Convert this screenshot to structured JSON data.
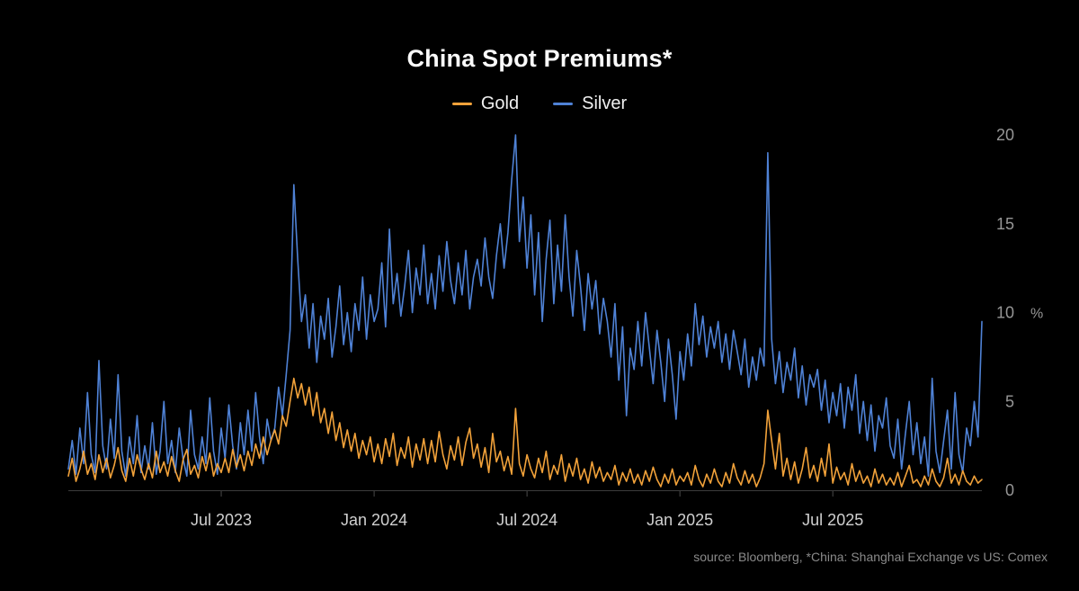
{
  "chart_data": {
    "type": "line",
    "title": "China Spot Premiums*",
    "source": "source: Bloomberg, *China: Shanghai Exchange vs US: Comex",
    "ylabel": "%",
    "ylim": [
      0,
      20
    ],
    "y_ticks": [
      0,
      5,
      10,
      15,
      20
    ],
    "grid": false,
    "legend_position": "top-center",
    "x_unit": "months since Jan 2023",
    "x_domain": [
      0,
      35.85
    ],
    "x_start": 0,
    "x_step": 0.15,
    "x_ticks": [
      {
        "pos": 6,
        "label": "Jul 2023"
      },
      {
        "pos": 12,
        "label": "Jan 2024"
      },
      {
        "pos": 18,
        "label": "Jul 2024"
      },
      {
        "pos": 24,
        "label": "Jan 2025"
      },
      {
        "pos": 30,
        "label": "Jul 2025"
      }
    ],
    "colors": {
      "axis": "#3c3c3c",
      "tick_mark": "#4a4a4a",
      "x_tick_label": "#d0d0d0",
      "y_tick_label": "#969696",
      "title": "#fafafa",
      "legend_text": "#f0f0f0",
      "source_text": "#8a8a8a",
      "background": "#000000"
    },
    "series": [
      {
        "name": "Gold",
        "color": "#f2a23a",
        "values": [
          0.8,
          1.8,
          0.5,
          1.2,
          2.2,
          0.9,
          1.5,
          0.6,
          2.0,
          1.0,
          1.8,
          0.7,
          1.4,
          2.4,
          1.1,
          0.5,
          1.8,
          0.8,
          2.0,
          1.2,
          0.6,
          1.5,
          0.7,
          2.2,
          1.0,
          1.6,
          0.8,
          1.9,
          1.1,
          0.5,
          1.7,
          2.3,
          0.9,
          1.4,
          0.7,
          1.9,
          1.1,
          2.1,
          0.8,
          1.5,
          1.0,
          1.8,
          1.0,
          2.3,
          1.3,
          2.0,
          1.1,
          2.2,
          1.4,
          2.6,
          1.8,
          3.0,
          2.0,
          2.8,
          3.4,
          2.6,
          4.2,
          3.6,
          5.0,
          6.3,
          5.2,
          6.0,
          4.8,
          5.8,
          4.2,
          5.5,
          3.8,
          4.6,
          3.2,
          4.4,
          2.8,
          3.8,
          2.4,
          3.4,
          2.2,
          3.2,
          1.8,
          2.8,
          2.0,
          3.0,
          1.6,
          2.6,
          1.5,
          2.9,
          1.9,
          3.2,
          1.4,
          2.4,
          1.8,
          3.0,
          1.3,
          2.6,
          1.7,
          2.9,
          1.5,
          2.8,
          1.6,
          3.3,
          2.0,
          1.2,
          2.5,
          1.7,
          3.0,
          1.4,
          2.7,
          3.5,
          1.8,
          2.6,
          1.3,
          2.4,
          1.0,
          3.2,
          1.6,
          2.2,
          1.1,
          1.9,
          0.9,
          4.6,
          1.5,
          0.8,
          2.0,
          1.2,
          0.7,
          1.8,
          1.0,
          2.2,
          0.6,
          1.4,
          0.9,
          2.0,
          0.5,
          1.5,
          0.8,
          1.8,
          0.6,
          1.2,
          0.4,
          1.6,
          0.7,
          1.3,
          0.5,
          1.0,
          0.6,
          1.4,
          0.3,
          1.0,
          0.5,
          1.2,
          0.4,
          0.9,
          0.3,
          1.1,
          0.5,
          1.3,
          0.6,
          0.2,
          0.9,
          0.4,
          1.2,
          0.3,
          0.8,
          0.5,
          1.0,
          0.3,
          1.4,
          0.6,
          0.2,
          0.9,
          0.4,
          1.2,
          0.5,
          0.2,
          1.0,
          0.4,
          1.5,
          0.7,
          0.3,
          1.1,
          0.4,
          0.9,
          0.2,
          0.7,
          1.5,
          4.5,
          2.8,
          1.2,
          3.2,
          0.8,
          1.8,
          0.6,
          1.6,
          0.4,
          1.2,
          2.4,
          0.7,
          1.4,
          0.5,
          1.8,
          0.8,
          2.6,
          0.4,
          1.3,
          0.6,
          1.0,
          0.3,
          1.5,
          0.5,
          1.1,
          0.4,
          0.8,
          0.2,
          1.2,
          0.4,
          0.9,
          0.3,
          0.7,
          0.3,
          1.0,
          0.2,
          0.8,
          1.4,
          0.4,
          0.6,
          0.2,
          0.8,
          0.3,
          1.2,
          0.5,
          0.2,
          0.7,
          1.8,
          0.4,
          0.9,
          0.3,
          1.1,
          0.5,
          0.3,
          0.8,
          0.4,
          0.6
        ]
      },
      {
        "name": "Silver",
        "color": "#4f82d6",
        "values": [
          1.2,
          2.8,
          0.9,
          3.5,
          1.5,
          5.5,
          2.0,
          1.0,
          7.3,
          2.5,
          1.2,
          4.0,
          1.8,
          6.5,
          2.2,
          0.8,
          3.0,
          1.5,
          4.2,
          1.0,
          2.5,
          1.2,
          3.8,
          0.9,
          2.2,
          5.0,
          1.5,
          2.8,
          1.0,
          3.5,
          1.8,
          0.8,
          4.5,
          2.0,
          1.2,
          3.0,
          1.5,
          5.2,
          2.2,
          0.9,
          3.5,
          1.8,
          4.8,
          2.5,
          1.2,
          3.8,
          2.0,
          4.5,
          2.2,
          5.5,
          3.0,
          1.5,
          4.0,
          2.8,
          3.5,
          5.8,
          4.2,
          6.5,
          9.0,
          17.2,
          13.0,
          9.5,
          11.0,
          8.0,
          10.5,
          7.2,
          9.8,
          8.5,
          10.8,
          7.5,
          9.2,
          11.5,
          8.2,
          10.0,
          7.8,
          10.5,
          9.0,
          12.0,
          8.5,
          11.0,
          9.5,
          10.2,
          12.8,
          9.2,
          14.7,
          10.5,
          12.2,
          9.8,
          11.5,
          13.5,
          10.0,
          12.5,
          11.0,
          13.8,
          10.5,
          12.2,
          10.2,
          13.2,
          11.2,
          14.0,
          11.8,
          10.5,
          12.8,
          11.0,
          13.5,
          10.2,
          12.0,
          13.0,
          11.5,
          14.2,
          12.0,
          10.8,
          13.2,
          15.0,
          12.5,
          14.5,
          17.5,
          20.0,
          14.0,
          16.5,
          12.5,
          15.5,
          11.0,
          14.5,
          9.5,
          13.0,
          15.2,
          10.5,
          13.8,
          11.2,
          15.5,
          12.0,
          9.8,
          13.5,
          11.5,
          9.0,
          12.2,
          10.2,
          11.8,
          8.8,
          10.8,
          9.5,
          7.5,
          10.5,
          6.2,
          9.2,
          4.2,
          8.0,
          6.8,
          9.5,
          7.0,
          10.0,
          8.0,
          6.0,
          9.0,
          7.2,
          5.0,
          8.5,
          6.5,
          4.0,
          7.8,
          6.2,
          8.8,
          7.0,
          10.5,
          8.2,
          9.8,
          7.5,
          9.2,
          8.0,
          9.5,
          7.2,
          8.8,
          6.8,
          9.0,
          7.8,
          6.5,
          8.5,
          5.8,
          7.5,
          6.2,
          8.0,
          7.0,
          19.0,
          8.5,
          6.0,
          7.8,
          5.5,
          7.2,
          6.2,
          8.0,
          5.2,
          7.0,
          4.8,
          6.5,
          5.8,
          6.8,
          4.5,
          6.2,
          3.8,
          5.5,
          4.2,
          6.0,
          3.5,
          5.8,
          4.5,
          6.5,
          3.2,
          5.0,
          2.8,
          4.8,
          2.2,
          4.2,
          3.5,
          5.2,
          2.5,
          1.8,
          4.0,
          1.2,
          3.2,
          5.0,
          2.0,
          3.8,
          1.5,
          3.0,
          0.8,
          6.3,
          2.2,
          1.0,
          2.8,
          4.5,
          1.2,
          5.5,
          2.0,
          1.0,
          3.5,
          2.5,
          5.0,
          3.0,
          9.5
        ]
      }
    ]
  }
}
